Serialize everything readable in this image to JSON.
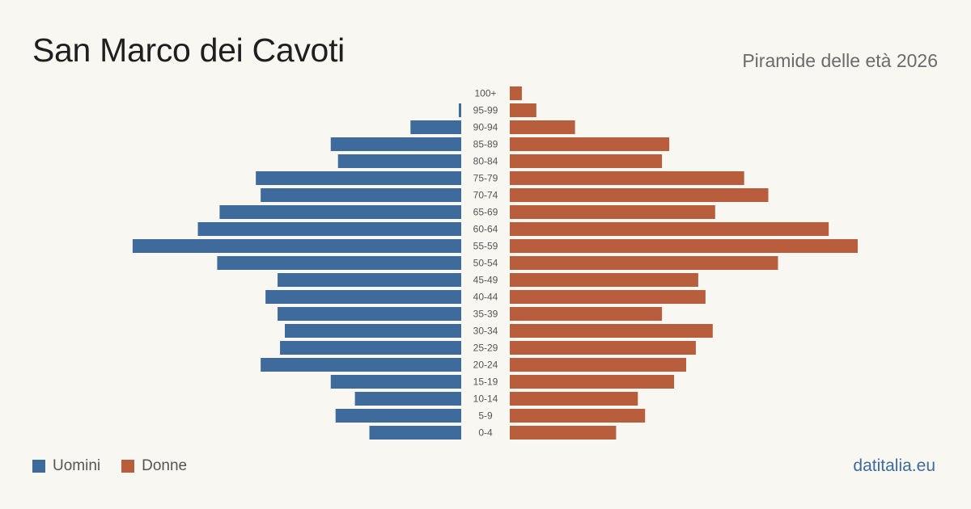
{
  "header": {
    "title": "San Marco dei Cavoti",
    "subtitle": "Piramide delle età 2026"
  },
  "legend": {
    "men_label": "Uomini",
    "women_label": "Donne"
  },
  "footer": {
    "source": "datitalia.eu"
  },
  "colors": {
    "men": "#3e6b9b",
    "women": "#b85e3c",
    "background": "#f9f7f2",
    "tick_label": "#555555"
  },
  "chart_data": {
    "type": "bar",
    "orientation": "horizontal-pyramid",
    "categories": [
      "100+",
      "95-99",
      "90-94",
      "85-89",
      "80-84",
      "75-79",
      "70-74",
      "65-69",
      "60-64",
      "55-59",
      "50-54",
      "45-49",
      "40-44",
      "35-39",
      "30-34",
      "25-29",
      "20-24",
      "15-19",
      "10-14",
      "5-9",
      "0-4"
    ],
    "series": [
      {
        "name": "Uomini",
        "values": [
          0,
          1,
          21,
          54,
          51,
          85,
          83,
          100,
          109,
          136,
          101,
          76,
          81,
          76,
          73,
          75,
          83,
          54,
          44,
          52,
          38
        ]
      },
      {
        "name": "Donne",
        "values": [
          5,
          11,
          27,
          66,
          63,
          97,
          107,
          85,
          132,
          144,
          111,
          78,
          81,
          63,
          84,
          77,
          73,
          68,
          53,
          56,
          44
        ]
      }
    ],
    "xlim": [
      0,
      150
    ],
    "grid": false,
    "legend_position": "bottom-left"
  }
}
